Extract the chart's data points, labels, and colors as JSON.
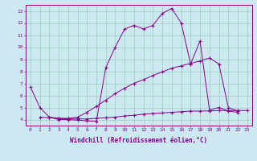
{
  "background_color": "#cce8f0",
  "grid_color": "#99ccbb",
  "line_color": "#880088",
  "xlabel": "Windchill (Refroidissement éolien,°C)",
  "xlim": [
    -0.5,
    23.5
  ],
  "ylim": [
    3.5,
    13.5
  ],
  "yticks": [
    4,
    5,
    6,
    7,
    8,
    9,
    10,
    11,
    12,
    13
  ],
  "xticks": [
    0,
    1,
    2,
    3,
    4,
    5,
    6,
    7,
    8,
    9,
    10,
    11,
    12,
    13,
    14,
    15,
    16,
    17,
    18,
    19,
    20,
    21,
    22,
    23
  ],
  "line1_x": [
    0,
    1,
    2,
    3,
    4,
    5,
    6,
    7,
    8,
    9,
    10,
    11,
    12,
    13,
    14,
    15,
    16,
    17,
    18,
    19,
    20,
    21,
    22
  ],
  "line1_y": [
    6.7,
    5.0,
    4.2,
    4.0,
    4.0,
    3.95,
    3.9,
    3.85,
    8.3,
    10.0,
    11.5,
    11.8,
    11.5,
    11.8,
    12.8,
    13.2,
    12.0,
    8.6,
    10.5,
    4.8,
    5.0,
    4.7,
    4.6
  ],
  "line2_x": [
    1,
    2,
    3,
    4,
    5,
    6,
    7,
    8,
    9,
    10,
    11,
    12,
    13,
    14,
    15,
    16,
    17,
    18,
    19,
    20,
    21,
    22
  ],
  "line2_y": [
    4.2,
    4.15,
    4.1,
    4.1,
    4.2,
    4.6,
    5.1,
    5.6,
    6.15,
    6.6,
    7.0,
    7.3,
    7.65,
    7.95,
    8.25,
    8.45,
    8.65,
    8.85,
    9.1,
    8.6,
    5.0,
    4.7
  ],
  "line3_x": [
    2,
    3,
    4,
    5,
    6,
    7,
    8,
    9,
    10,
    11,
    12,
    13,
    14,
    15,
    16,
    17,
    18,
    19,
    20,
    21,
    22,
    23
  ],
  "line3_y": [
    4.2,
    4.1,
    4.05,
    4.05,
    4.05,
    4.1,
    4.15,
    4.2,
    4.3,
    4.35,
    4.45,
    4.5,
    4.55,
    4.6,
    4.65,
    4.7,
    4.7,
    4.72,
    4.75,
    4.75,
    4.75,
    4.75
  ]
}
